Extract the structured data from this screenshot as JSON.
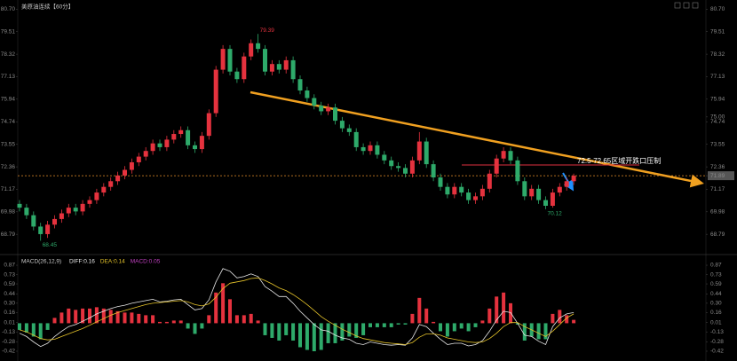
{
  "chart_data": [
    {
      "type": "candlestick",
      "title": "美原油连续【60分】",
      "annotation": "72.5-72.65区域开跌口压制",
      "up_color": "#e5323e",
      "down_color": "#2eaa6a",
      "last_color": "#e8902a",
      "ylim": [
        68,
        81
      ],
      "y2lim": [
        68,
        81
      ],
      "yticks": [
        {
          "value": 80.7,
          "label": "80.70"
        },
        79.51,
        78.32,
        77.13,
        75.94,
        74.74,
        73.55,
        72.36,
        71.17,
        69.98,
        68.79
      ],
      "y2ticks": [
        {
          "value": 80.7,
          "label": "80.70"
        },
        79.51,
        78.32,
        77.13,
        75.94,
        {
          "value": 75,
          "label": "75.00"
        },
        74.74,
        73.55,
        72.36,
        71.89,
        71.17,
        69.98,
        68.79
      ],
      "open": [
        70.4,
        70.2,
        69.8,
        69.2,
        68.8,
        69.3,
        69.6,
        69.9,
        70.2,
        70.0,
        70.4,
        70.6,
        71.0,
        71.3,
        71.6,
        71.9,
        72.2,
        72.6,
        72.9,
        73.2,
        73.6,
        73.4,
        73.8,
        74.1,
        74.3,
        73.5,
        73.3,
        74.0,
        75.2,
        77.5,
        78.6,
        77.4,
        77.0,
        78.2,
        78.9,
        78.6,
        77.4,
        77.8,
        77.5,
        78.0,
        77.0,
        76.4,
        76.0,
        75.6,
        75.3,
        75.5,
        74.8,
        74.4,
        74.2,
        73.4,
        73.2,
        73.5,
        73.0,
        72.7,
        72.4,
        72.3,
        72.0,
        72.7,
        73.7,
        72.5,
        71.8,
        71.3,
        70.9,
        71.3,
        71.0,
        70.6,
        70.8,
        71.2,
        72.0,
        72.8,
        73.2,
        72.7,
        71.6,
        70.8,
        71.2,
        70.6,
        70.3,
        71.0,
        71.3,
        71.6
      ],
      "high": [
        70.6,
        70.4,
        70.0,
        69.4,
        69.5,
        69.8,
        70.1,
        70.4,
        70.4,
        70.6,
        70.8,
        71.2,
        71.5,
        71.8,
        72.1,
        72.4,
        72.8,
        73.1,
        73.4,
        73.8,
        73.8,
        74.0,
        74.3,
        74.5,
        74.5,
        73.7,
        74.2,
        75.4,
        77.7,
        78.8,
        78.8,
        77.6,
        78.4,
        79.1,
        79.39,
        78.8,
        78.0,
        78.0,
        78.2,
        78.2,
        77.2,
        76.6,
        76.2,
        75.8,
        75.7,
        75.7,
        75.0,
        74.6,
        74.4,
        73.6,
        73.7,
        73.7,
        73.2,
        72.9,
        72.6,
        72.5,
        72.9,
        74.2,
        73.9,
        72.7,
        72.0,
        71.5,
        71.5,
        71.5,
        71.2,
        71.0,
        71.4,
        72.2,
        73.0,
        73.4,
        73.4,
        72.9,
        71.8,
        71.4,
        71.4,
        70.8,
        71.2,
        71.5,
        71.8,
        72.0
      ],
      "low": [
        70.0,
        69.6,
        69.0,
        68.45,
        68.6,
        69.1,
        69.4,
        69.7,
        69.8,
        69.8,
        70.2,
        70.4,
        70.8,
        71.1,
        71.4,
        71.7,
        72.0,
        72.4,
        72.7,
        73.0,
        73.2,
        73.2,
        73.6,
        73.9,
        73.3,
        73.1,
        73.1,
        73.8,
        75.0,
        77.3,
        77.2,
        76.8,
        76.8,
        78.0,
        78.4,
        77.2,
        77.2,
        77.3,
        77.3,
        76.8,
        76.2,
        75.8,
        75.4,
        75.1,
        75.1,
        74.6,
        74.2,
        74.0,
        73.2,
        73.0,
        73.0,
        72.8,
        72.5,
        72.2,
        72.1,
        71.8,
        71.8,
        72.5,
        72.3,
        71.6,
        71.1,
        70.7,
        70.7,
        70.8,
        70.4,
        70.4,
        70.6,
        71.0,
        71.8,
        72.6,
        72.5,
        71.4,
        70.6,
        70.6,
        70.4,
        70.12,
        70.2,
        70.8,
        71.1,
        71.4
      ],
      "close": [
        70.2,
        69.8,
        69.2,
        68.8,
        69.3,
        69.6,
        69.9,
        70.2,
        70.0,
        70.4,
        70.6,
        71.0,
        71.3,
        71.6,
        71.9,
        72.2,
        72.6,
        72.9,
        73.2,
        73.6,
        73.4,
        73.8,
        74.1,
        74.3,
        73.5,
        73.3,
        74.0,
        75.2,
        77.5,
        78.6,
        77.4,
        77.0,
        78.2,
        78.9,
        78.6,
        77.4,
        77.8,
        77.5,
        78.0,
        77.0,
        76.4,
        76.0,
        75.6,
        75.3,
        75.5,
        74.8,
        74.4,
        74.2,
        73.4,
        73.2,
        73.5,
        73.0,
        72.7,
        72.4,
        72.3,
        72.0,
        72.7,
        73.7,
        72.5,
        71.8,
        71.3,
        70.9,
        71.3,
        71.0,
        70.6,
        70.8,
        71.2,
        72.0,
        72.8,
        73.2,
        72.7,
        71.6,
        70.8,
        71.2,
        70.6,
        70.3,
        71.0,
        71.3,
        71.6,
        71.89
      ]
    },
    {
      "type": "macd",
      "title": "MACD(26,12,9)",
      "ylim": [
        -0.5,
        0.95
      ],
      "y2lim": [
        -0.5,
        0.95
      ],
      "yticks": [
        0.87,
        0.73,
        0.59,
        0.44,
        {
          "value": 0.3,
          "label": "0.30"
        },
        0.16,
        0.01,
        -0.13,
        -0.28,
        -0.42
      ],
      "y2ticks": [
        0.87,
        0.73,
        0.59,
        0.44,
        {
          "value": 0.3,
          "label": "0.30"
        },
        0.16,
        0.01,
        -0.13,
        -0.28,
        -0.42
      ],
      "series": [
        {
          "name": "DIFF:0.16",
          "color": "#e8e8e8",
          "values": [
            -0.15,
            -0.2,
            -0.28,
            -0.35,
            -0.3,
            -0.2,
            -0.12,
            -0.05,
            -0.02,
            0.03,
            0.08,
            0.14,
            0.18,
            0.22,
            0.25,
            0.27,
            0.3,
            0.32,
            0.34,
            0.36,
            0.32,
            0.33,
            0.35,
            0.36,
            0.28,
            0.2,
            0.22,
            0.35,
            0.62,
            0.82,
            0.78,
            0.68,
            0.7,
            0.74,
            0.7,
            0.55,
            0.48,
            0.4,
            0.4,
            0.3,
            0.18,
            0.08,
            -0.02,
            -0.1,
            -0.12,
            -0.18,
            -0.22,
            -0.24,
            -0.3,
            -0.32,
            -0.28,
            -0.3,
            -0.32,
            -0.33,
            -0.32,
            -0.33,
            -0.22,
            -0.02,
            -0.05,
            -0.15,
            -0.24,
            -0.32,
            -0.3,
            -0.3,
            -0.34,
            -0.32,
            -0.26,
            -0.12,
            0.05,
            0.18,
            0.16,
            0.0,
            -0.18,
            -0.2,
            -0.27,
            -0.32,
            -0.05,
            0.08,
            0.14,
            0.16
          ]
        },
        {
          "name": "DEA:0.14",
          "color": "#e5c32a",
          "values": [
            -0.1,
            -0.13,
            -0.18,
            -0.23,
            -0.25,
            -0.24,
            -0.2,
            -0.16,
            -0.12,
            -0.08,
            -0.03,
            0.02,
            0.07,
            0.12,
            0.16,
            0.19,
            0.22,
            0.25,
            0.28,
            0.3,
            0.31,
            0.32,
            0.33,
            0.34,
            0.32,
            0.28,
            0.26,
            0.29,
            0.39,
            0.52,
            0.6,
            0.62,
            0.64,
            0.67,
            0.68,
            0.64,
            0.59,
            0.53,
            0.49,
            0.43,
            0.36,
            0.28,
            0.19,
            0.1,
            0.03,
            -0.03,
            -0.09,
            -0.14,
            -0.19,
            -0.23,
            -0.25,
            -0.27,
            -0.29,
            -0.3,
            -0.31,
            -0.32,
            -0.29,
            -0.21,
            -0.16,
            -0.16,
            -0.18,
            -0.22,
            -0.24,
            -0.26,
            -0.28,
            -0.29,
            -0.28,
            -0.23,
            -0.15,
            -0.05,
            0.01,
            0.01,
            -0.05,
            -0.1,
            -0.15,
            -0.2,
            -0.12,
            -0.02,
            0.08,
            0.14
          ]
        }
      ],
      "histogram": {
        "name": "MACD:0.05",
        "color": "#c040c0",
        "up_color": "#e5323e",
        "down_color": "#2eaa6a",
        "values": [
          -0.1,
          -0.14,
          -0.2,
          -0.24,
          -0.1,
          0.08,
          0.16,
          0.22,
          0.2,
          0.22,
          0.22,
          0.24,
          0.22,
          0.2,
          0.18,
          0.16,
          0.16,
          0.14,
          0.12,
          0.12,
          0.02,
          0.02,
          0.04,
          0.04,
          -0.08,
          -0.16,
          -0.08,
          0.12,
          0.46,
          0.6,
          0.36,
          0.12,
          0.12,
          0.14,
          0.04,
          -0.18,
          -0.22,
          -0.26,
          -0.18,
          -0.26,
          -0.36,
          -0.4,
          -0.42,
          -0.4,
          -0.3,
          -0.3,
          -0.26,
          -0.2,
          -0.22,
          -0.18,
          -0.06,
          -0.06,
          -0.06,
          -0.06,
          -0.02,
          -0.02,
          0.14,
          0.38,
          0.22,
          0.02,
          -0.12,
          -0.2,
          -0.12,
          -0.08,
          -0.12,
          -0.06,
          0.04,
          0.22,
          0.4,
          0.46,
          0.3,
          -0.02,
          -0.26,
          -0.2,
          -0.24,
          -0.24,
          0.14,
          0.2,
          0.12,
          0.05
        ]
      }
    }
  ]
}
